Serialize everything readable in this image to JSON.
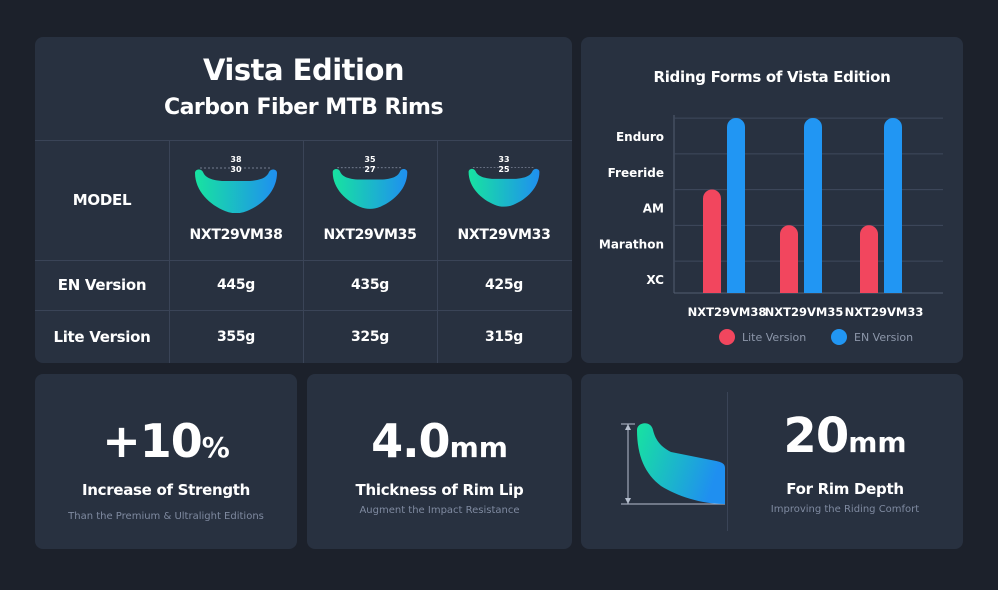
{
  "table": {
    "title": "Vista Edition",
    "subtitle": "Carbon Fiber MTB Rims",
    "model_header": "MODEL",
    "models": [
      {
        "name": "NXT29VM38",
        "outer": "38",
        "inner": "30",
        "en": "445g",
        "lite": "355g"
      },
      {
        "name": "NXT29VM35",
        "outer": "35",
        "inner": "27",
        "en": "435g",
        "lite": "325g"
      },
      {
        "name": "NXT29VM33",
        "outer": "33",
        "inner": "25",
        "en": "425g",
        "lite": "315g"
      }
    ],
    "en_label": "EN Version",
    "lite_label": "Lite Version"
  },
  "chart_data": {
    "type": "bar",
    "title": "Riding Forms of Vista Edition",
    "categories": [
      "NXT29VM38",
      "NXT29VM35",
      "NXT29VM33"
    ],
    "y_levels": [
      "XC",
      "Marathon",
      "AM",
      "Freeride",
      "Enduro"
    ],
    "series": [
      {
        "name": "Lite Version",
        "color": "#f2465e",
        "values": [
          "AM",
          "Marathon",
          "Marathon"
        ]
      },
      {
        "name": "EN Version",
        "color": "#2196f3",
        "values": [
          "Enduro",
          "Enduro",
          "Enduro"
        ]
      }
    ],
    "legend_position": "bottom",
    "grid": true
  },
  "stats": {
    "strength": {
      "value": "+10",
      "unit": "%",
      "label": "Increase of Strength",
      "sub": "Than the Premium & Ultralight Editions"
    },
    "lip": {
      "value": "4.0",
      "unit": "mm",
      "label": "Thickness of Rim Lip",
      "sub": "Augment the Impact Resistance"
    },
    "depth": {
      "value": "20",
      "unit": "mm",
      "label": "For Rim Depth",
      "sub": "Improving the Riding Comfort"
    }
  },
  "colors": {
    "background": "#1c212b",
    "card": "#283140",
    "lite": "#f2465e",
    "en": "#2196f3",
    "gradient_start": "#16d9a5",
    "gradient_end": "#1f8ff0"
  }
}
